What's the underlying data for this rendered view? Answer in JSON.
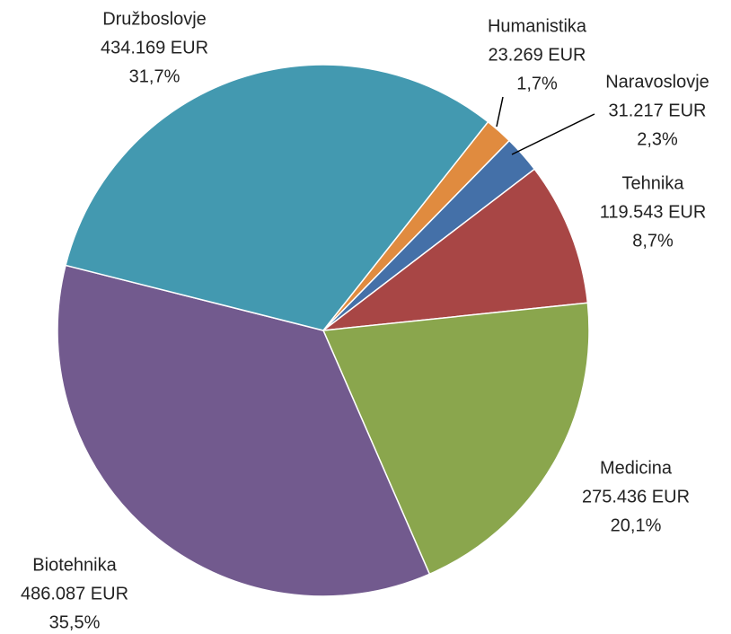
{
  "chart_data": {
    "type": "pie",
    "categories": [
      "Humanistika",
      "Naravoslovje",
      "Tehnika",
      "Medicina",
      "Biotehnika",
      "Družboslovje"
    ],
    "values": [
      23269,
      31217,
      119543,
      275436,
      486087,
      434169
    ],
    "value_labels": [
      "23.269 EUR",
      "31.217 EUR",
      "119.543 EUR",
      "275.436 EUR",
      "486.087 EUR",
      "434.169 EUR"
    ],
    "percent_labels": [
      "1,7%",
      "2,3%",
      "8,7%",
      "20,1%",
      "35,5%",
      "31,7%"
    ],
    "colors": [
      "#e08b3f",
      "#4470a8",
      "#a84645",
      "#8aa64d",
      "#725a8e",
      "#4399b0"
    ]
  }
}
